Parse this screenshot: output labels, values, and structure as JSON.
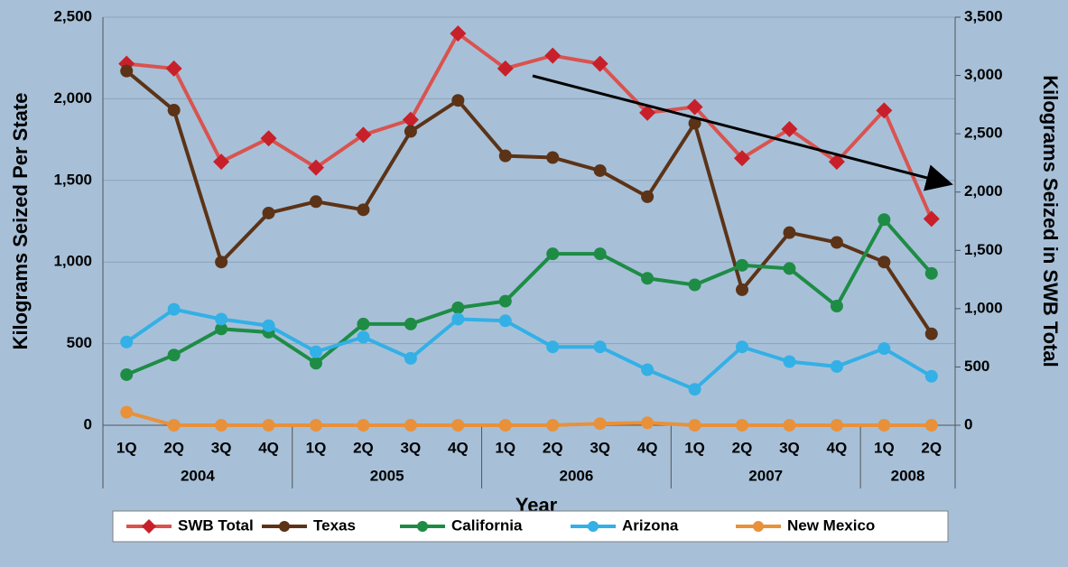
{
  "chart_data": {
    "type": "line",
    "x_label": "Year",
    "y_label": "Kilograms Seized Per State",
    "y2_label": "Kilograms Seized in SWB Total",
    "category_groups": [
      {
        "label": "2004",
        "categories": [
          "1Q",
          "2Q",
          "3Q",
          "4Q"
        ]
      },
      {
        "label": "2005",
        "categories": [
          "1Q",
          "2Q",
          "3Q",
          "4Q"
        ]
      },
      {
        "label": "2006",
        "categories": [
          "1Q",
          "2Q",
          "3Q",
          "4Q"
        ]
      },
      {
        "label": "2007",
        "categories": [
          "1Q",
          "2Q",
          "3Q",
          "4Q"
        ]
      },
      {
        "label": "2008",
        "categories": [
          "1Q",
          "2Q"
        ]
      }
    ],
    "ylim": [
      0,
      2500
    ],
    "yticks": [
      0,
      {
        "value": 500,
        "label": "500"
      },
      {
        "value": 1000,
        "label": "1,000"
      },
      {
        "value": 1500,
        "label": "1,500"
      },
      {
        "value": 2000,
        "label": "2,000"
      },
      {
        "value": 2500,
        "label": "2,500"
      }
    ],
    "y2lim": [
      0,
      3500
    ],
    "y2ticks": [
      0,
      500,
      {
        "value": 1000,
        "label": "1,000"
      },
      {
        "value": 1500,
        "label": "1,500"
      },
      {
        "value": 2000,
        "label": "2,000"
      },
      {
        "value": 2500,
        "label": "2,500"
      },
      {
        "value": 3000,
        "label": "3,000"
      },
      {
        "value": 3500,
        "label": "3,500"
      }
    ],
    "grid": true,
    "legend": "bottom",
    "series": [
      {
        "name": "SWB Total",
        "color": "#d9534f",
        "marker": "diamond",
        "axis": "y2",
        "values": [
          3100,
          3060,
          2260,
          2460,
          2210,
          2490,
          2620,
          3360,
          3060,
          3170,
          3100,
          2680,
          2730,
          2290,
          2540,
          2260,
          2700,
          1770
        ]
      },
      {
        "name": "Texas",
        "color": "#5c3317",
        "marker": "circle",
        "values": [
          2170,
          1930,
          1000,
          1300,
          1370,
          1320,
          1800,
          1990,
          1650,
          1640,
          1560,
          1400,
          1850,
          830,
          1180,
          1120,
          1000,
          560
        ]
      },
      {
        "name": "California",
        "color": "#1e8c45",
        "marker": "circle",
        "values": [
          310,
          430,
          590,
          570,
          380,
          620,
          620,
          720,
          760,
          1050,
          1050,
          900,
          860,
          980,
          960,
          730,
          1260,
          930
        ]
      },
      {
        "name": "Arizona",
        "color": "#33b0e6",
        "marker": "circle",
        "values": [
          510,
          710,
          650,
          610,
          450,
          540,
          410,
          650,
          640,
          480,
          480,
          340,
          220,
          480,
          390,
          360,
          470,
          300
        ]
      },
      {
        "name": "New Mexico",
        "color": "#e8913a",
        "marker": "circle",
        "values": [
          80,
          0,
          0,
          0,
          0,
          0,
          0,
          0,
          0,
          0,
          10,
          15,
          0,
          0,
          0,
          0,
          0,
          0
        ]
      }
    ]
  }
}
